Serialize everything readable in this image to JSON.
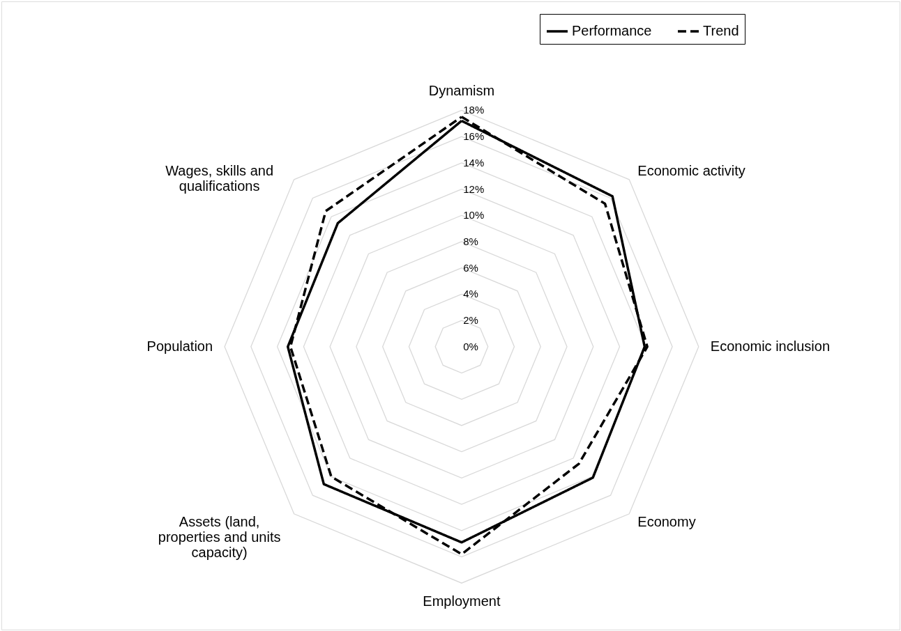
{
  "chart_data": {
    "type": "radar",
    "categories": [
      "Dynamism",
      "Economic activity",
      "Economic inclusion",
      "Economy",
      "Employment",
      "Assets (land, properties and units capacity)",
      "Population",
      "Wages, skills and qualifications"
    ],
    "series": [
      {
        "name": "Performance",
        "color": "#000000",
        "line_style": "solid",
        "values": [
          17.2,
          16.2,
          13.9,
          14.1,
          14.9,
          14.8,
          13.2,
          13.3
        ]
      },
      {
        "name": "Trend",
        "color": "#000000",
        "line_style": "dashed",
        "values": [
          17.5,
          15.4,
          14.1,
          12.6,
          15.8,
          14.0,
          13.0,
          14.6
        ]
      }
    ],
    "ylim": [
      0,
      18
    ],
    "yticks": [
      {
        "value": 0,
        "label": "0%"
      },
      {
        "value": 2,
        "label": "2%"
      },
      {
        "value": 4,
        "label": "4%"
      },
      {
        "value": 6,
        "label": "6%"
      },
      {
        "value": 8,
        "label": "8%"
      },
      {
        "value": 10,
        "label": "10%"
      },
      {
        "value": 12,
        "label": "12%"
      },
      {
        "value": 14,
        "label": "14%"
      },
      {
        "value": 16,
        "label": "16%"
      },
      {
        "value": 18,
        "label": "18%"
      }
    ],
    "grid": true,
    "legend": "top right"
  }
}
